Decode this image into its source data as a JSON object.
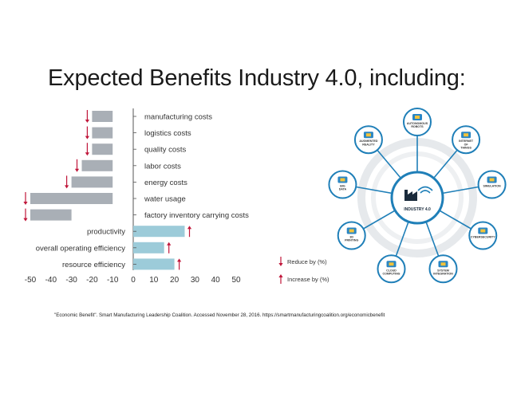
{
  "slide": {
    "title": "Expected Benefits Industry 4.0, including:",
    "citation": "\"Economic Benefit\". Smart Manufacturing Leadership Coalition. Accessed November 28, 2016. https://smartmanufacturingcoalition.org/economicbenefit"
  },
  "chart_data": {
    "type": "bar",
    "orientation": "horizontal",
    "categories": [
      "manufacturing costs",
      "logistics costs",
      "quality costs",
      "labor costs",
      "energy costs",
      "water usage",
      "factory inventory carrying costs",
      "productivity",
      "overall operating efficiency",
      "resource efficiency"
    ],
    "values": [
      -10,
      -10,
      -10,
      -15,
      -20,
      -40,
      -20,
      25,
      15,
      20
    ],
    "range_start": [
      -20,
      -20,
      -20,
      -25,
      -30,
      -50,
      -50,
      0,
      0,
      0
    ],
    "direction": [
      "reduce",
      "reduce",
      "reduce",
      "reduce",
      "reduce",
      "reduce",
      "reduce",
      "increase",
      "increase",
      "increase"
    ],
    "xlim": [
      -50,
      50
    ],
    "xticks": [
      -50,
      -40,
      -30,
      -20,
      -10,
      0,
      10,
      20,
      30,
      40,
      50
    ],
    "colors": {
      "reduce_bar": "#a9afb6",
      "increase_bar": "#9ccbd9",
      "arrow": "#c0163a"
    },
    "legend": [
      {
        "direction": "reduce",
        "label": "Reduce by (%)"
      },
      {
        "direction": "increase",
        "label": "Increase by (%)"
      }
    ]
  },
  "diagram": {
    "center": "INDUSTRY 4.0",
    "nodes": [
      {
        "label": "AUTONOMOUS ROBOTS",
        "icon": "robot-arm-icon"
      },
      {
        "label": "INTERNET OF THINGS",
        "icon": "phone-icon"
      },
      {
        "label": "SIMULATION",
        "icon": "monitor-icon"
      },
      {
        "label": "CYBERSECURITY",
        "icon": "shield-lock-icon"
      },
      {
        "label": "SYSTEM INTEGRATION",
        "icon": "gears-icon"
      },
      {
        "label": "CLOUD COMPUTING",
        "icon": "cloud-icon"
      },
      {
        "label": "3D PRINTING",
        "icon": "printer-icon"
      },
      {
        "label": "BIG DATA",
        "icon": "database-icon"
      },
      {
        "label": "AUGMENTED REALITY",
        "icon": "vr-goggles-icon"
      }
    ]
  }
}
